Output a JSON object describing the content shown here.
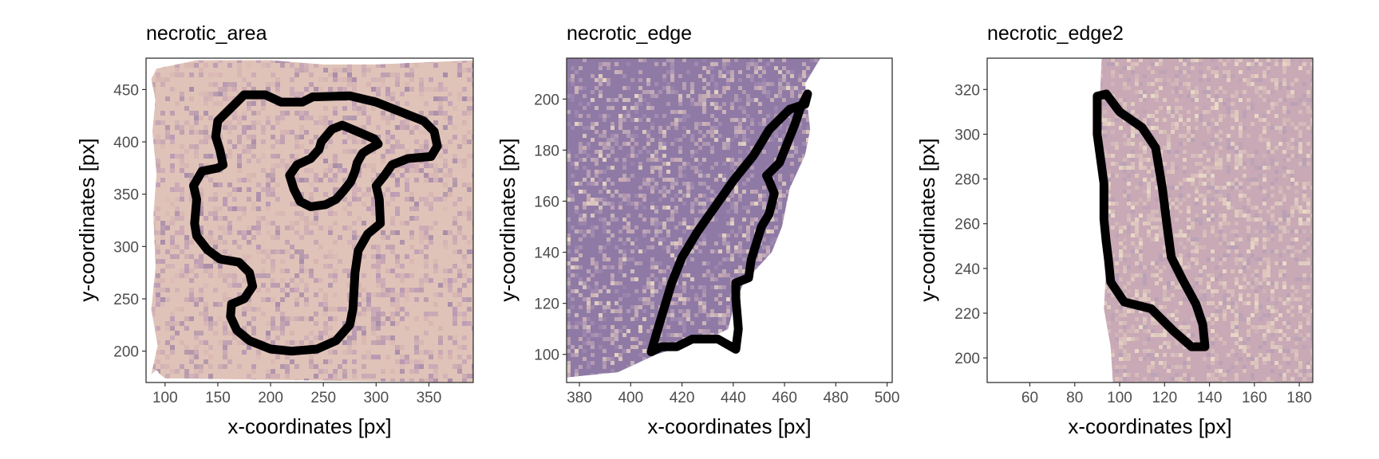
{
  "chart_data": [
    {
      "type": "image-with-outline",
      "title": "necrotic_area",
      "xlabel": "x-coordinates [px]",
      "ylabel": "y-coordinates [px]",
      "xlim": [
        82,
        392
      ],
      "ylim": [
        170,
        480
      ],
      "xticks": [
        100,
        150,
        200,
        250,
        300,
        350
      ],
      "yticks": [
        200,
        250,
        300,
        350,
        400,
        450
      ],
      "tissue_colors": [
        "#c9a7b5",
        "#e0c3b8",
        "#b796b3",
        "#d6b4b2",
        "#a58aa8"
      ],
      "outlines": [
        [
          [
            165,
            435
          ],
          [
            175,
            445
          ],
          [
            195,
            445
          ],
          [
            210,
            438
          ],
          [
            230,
            438
          ],
          [
            240,
            443
          ],
          [
            275,
            444
          ],
          [
            300,
            438
          ],
          [
            320,
            430
          ],
          [
            345,
            420
          ],
          [
            355,
            410
          ],
          [
            358,
            396
          ],
          [
            352,
            386
          ],
          [
            330,
            384
          ],
          [
            315,
            378
          ],
          [
            308,
            368
          ],
          [
            300,
            358
          ],
          [
            303,
            345
          ],
          [
            304,
            322
          ],
          [
            292,
            312
          ],
          [
            283,
            296
          ],
          [
            280,
            275
          ],
          [
            278,
            240
          ],
          [
            275,
            225
          ],
          [
            262,
            210
          ],
          [
            244,
            202
          ],
          [
            220,
            200
          ],
          [
            200,
            202
          ],
          [
            180,
            210
          ],
          [
            168,
            220
          ],
          [
            162,
            233
          ],
          [
            163,
            245
          ],
          [
            175,
            250
          ],
          [
            183,
            262
          ],
          [
            180,
            275
          ],
          [
            170,
            285
          ],
          [
            152,
            288
          ],
          [
            140,
            297
          ],
          [
            130,
            310
          ],
          [
            128,
            322
          ],
          [
            130,
            345
          ],
          [
            127,
            358
          ],
          [
            135,
            372
          ],
          [
            150,
            375
          ],
          [
            155,
            378
          ],
          [
            152,
            392
          ],
          [
            148,
            405
          ],
          [
            150,
            420
          ],
          [
            165,
            435
          ]
        ],
        [
          [
            248,
            400
          ],
          [
            258,
            412
          ],
          [
            268,
            416
          ],
          [
            282,
            410
          ],
          [
            298,
            403
          ],
          [
            302,
            398
          ],
          [
            293,
            393
          ],
          [
            287,
            389
          ],
          [
            282,
            380
          ],
          [
            280,
            372
          ],
          [
            276,
            362
          ],
          [
            269,
            353
          ],
          [
            262,
            345
          ],
          [
            252,
            340
          ],
          [
            238,
            338
          ],
          [
            228,
            343
          ],
          [
            222,
            355
          ],
          [
            218,
            368
          ],
          [
            225,
            378
          ],
          [
            238,
            384
          ],
          [
            246,
            393
          ],
          [
            248,
            400
          ]
        ]
      ]
    },
    {
      "type": "image-with-outline",
      "title": "necrotic_edge",
      "xlabel": "x-coordinates [px]",
      "ylabel": "y-coordinates [px]",
      "xlim": [
        375,
        502
      ],
      "ylim": [
        89,
        216
      ],
      "xticks": [
        380,
        400,
        420,
        440,
        460,
        480,
        500
      ],
      "yticks": [
        100,
        120,
        140,
        160,
        180,
        200
      ],
      "tissue_colors": [
        "#a48db2",
        "#8f7aa6",
        "#c1a9b8",
        "#e9d7c4",
        "#d3b6b8"
      ],
      "outlines": [
        [
          [
            408,
            101
          ],
          [
            412,
            103
          ],
          [
            418,
            103
          ],
          [
            424,
            106
          ],
          [
            434,
            106
          ],
          [
            441,
            102
          ],
          [
            442,
            110
          ],
          [
            441,
            122
          ],
          [
            441,
            128
          ],
          [
            446,
            130
          ],
          [
            447,
            137
          ],
          [
            451,
            150
          ],
          [
            454,
            155
          ],
          [
            456,
            163
          ],
          [
            454,
            168
          ],
          [
            453,
            170
          ],
          [
            458,
            175
          ],
          [
            460,
            180
          ],
          [
            462,
            185
          ],
          [
            464,
            190
          ],
          [
            466,
            196
          ],
          [
            469,
            202
          ],
          [
            468,
            198
          ],
          [
            462,
            196
          ],
          [
            454,
            188
          ],
          [
            448,
            178
          ],
          [
            440,
            168
          ],
          [
            433,
            158
          ],
          [
            426,
            148
          ],
          [
            420,
            138
          ],
          [
            416,
            128
          ],
          [
            413,
            118
          ],
          [
            410,
            108
          ],
          [
            408,
            101
          ]
        ]
      ]
    },
    {
      "type": "image-with-outline",
      "title": "necrotic_edge2",
      "xlabel": "x-coordinates [px]",
      "ylabel": "y-coordinates [px]",
      "xlim": [
        41,
        186
      ],
      "ylim": [
        189,
        334
      ],
      "xticks": [
        60,
        80,
        100,
        120,
        140,
        160,
        180
      ],
      "yticks": [
        200,
        220,
        240,
        260,
        280,
        300,
        320
      ],
      "tissue_colors": [
        "#e3cdbf",
        "#c8a9b5",
        "#ecdcc8",
        "#b7a0b7",
        "#d8bfbb"
      ],
      "outlines": [
        [
          [
            90,
            317
          ],
          [
            94,
            318
          ],
          [
            100,
            310
          ],
          [
            110,
            303
          ],
          [
            116,
            294
          ],
          [
            119,
            276
          ],
          [
            121,
            260
          ],
          [
            123,
            245
          ],
          [
            128,
            235
          ],
          [
            134,
            224
          ],
          [
            137,
            215
          ],
          [
            138,
            205
          ],
          [
            132,
            205
          ],
          [
            124,
            212
          ],
          [
            114,
            222
          ],
          [
            102,
            225
          ],
          [
            96,
            234
          ],
          [
            95,
            244
          ],
          [
            94,
            252
          ],
          [
            93,
            262
          ],
          [
            93,
            278
          ],
          [
            90,
            300
          ],
          [
            90,
            317
          ]
        ]
      ]
    }
  ]
}
